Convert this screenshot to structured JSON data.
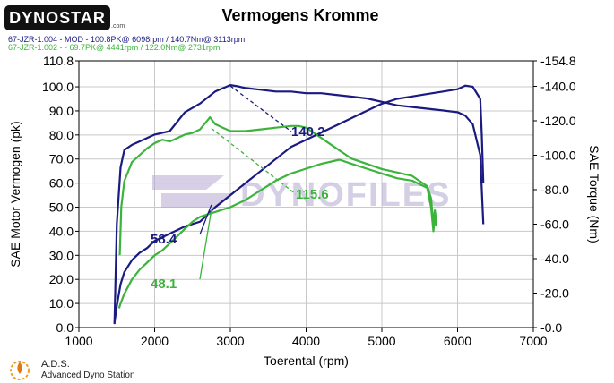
{
  "logo": {
    "text": "DYNOSTAR",
    "suffix": ".com"
  },
  "title": "Vermogens Kromme",
  "legend": [
    "67-JZR-1.004 - MOD - 100.8PK@ 6098rpm / 140.7Nm@ 3113rpm",
    "67-JZR-1.002 - - 69.7PK@ 4441rpm / 122.0Nm@ 2731rpm"
  ],
  "footer": {
    "name": "A.D.S.",
    "description": "Advanced Dyno Station"
  },
  "watermark": "DYNOFILES",
  "colors": {
    "dark_blue": "#1a1a80",
    "green": "#3cb43c",
    "grid": "#c8c8c8",
    "watermark": "#b4a8d0"
  },
  "chart_data": {
    "type": "line",
    "title": "Vermogens Kromme",
    "xlabel": "Toerental (rpm)",
    "ylabel_left": "SAE Motor Vermogen (pk)",
    "ylabel_right": "SAE Torque (Nm)",
    "xlim": [
      1000,
      7000
    ],
    "ylim_left": [
      0,
      110.8
    ],
    "ylim_right": [
      0,
      154.8
    ],
    "x_ticks": [
      "1000",
      "2000",
      "3000",
      "4000",
      "5000",
      "6000",
      "7000"
    ],
    "y_left_ticks": [
      "0.0",
      "10.0",
      "20.0",
      "30.0",
      "40.0",
      "50.0",
      "60.0",
      "70.0",
      "80.0",
      "90.0",
      "100.0",
      "110.8"
    ],
    "y_right_ticks": [
      "0.0",
      "20.0",
      "40.0",
      "60.0",
      "80.0",
      "100.0",
      "120.0",
      "140.0",
      "154.8"
    ],
    "grid": true,
    "annotations": [
      "140.2",
      "115.6",
      "58.4",
      "48.1"
    ],
    "series": [
      {
        "name": "67-JZR-1.004 - MOD",
        "kind": "power",
        "axis": "left",
        "color": "#1a1a80",
        "x": [
          1470,
          1500,
          1550,
          1600,
          1700,
          1800,
          1900,
          2000,
          2200,
          2400,
          2600,
          2800,
          3000,
          3200,
          3400,
          3600,
          3800,
          4000,
          4200,
          4400,
          4600,
          4800,
          5000,
          5200,
          5400,
          5600,
          5800,
          6000,
          6100,
          6200,
          6300,
          6320,
          6340
        ],
        "y": [
          2,
          9,
          18,
          23,
          28,
          31,
          33,
          36,
          39,
          42,
          44,
          50,
          55,
          60,
          65,
          70,
          75,
          78,
          81,
          84,
          87,
          90,
          93,
          95,
          96,
          97,
          98,
          99,
          100.5,
          100,
          95,
          80,
          60
        ]
      },
      {
        "name": "67-JZR-1.004 - MOD",
        "kind": "torque",
        "axis": "right",
        "color": "#1a1a80",
        "x": [
          1470,
          1500,
          1550,
          1600,
          1700,
          1800,
          1900,
          2000,
          2200,
          2400,
          2600,
          2800,
          3000,
          3100,
          3200,
          3400,
          3600,
          3800,
          4000,
          4200,
          4400,
          4600,
          4800,
          5000,
          5200,
          5400,
          5600,
          5800,
          6000,
          6100,
          6200,
          6300,
          6340
        ],
        "y": [
          2,
          60,
          93,
          103,
          106,
          108,
          110,
          112,
          114,
          125,
          130,
          137,
          140.7,
          140,
          139,
          138,
          137,
          137,
          136,
          136,
          135,
          134,
          133,
          131,
          129,
          128,
          127,
          126,
          125,
          123,
          118,
          100,
          60
        ]
      },
      {
        "name": "67-JZR-1.002",
        "kind": "power",
        "axis": "left",
        "color": "#3cb43c",
        "x": [
          1530,
          1550,
          1600,
          1700,
          1800,
          1900,
          2000,
          2100,
          2200,
          2300,
          2400,
          2500,
          2600,
          2700,
          2800,
          2900,
          3000,
          3200,
          3400,
          3600,
          3800,
          4000,
          4200,
          4441,
          4600,
          4800,
          5000,
          5200,
          5400,
          5600,
          5650,
          5680,
          5700,
          5720
        ],
        "y": [
          8,
          10,
          14,
          20,
          24,
          27,
          30,
          32,
          35,
          38,
          41,
          44,
          46,
          47,
          48,
          49,
          50,
          53,
          57,
          61,
          64,
          66,
          68,
          69.7,
          68,
          66,
          64,
          62,
          61,
          58,
          50,
          40,
          46,
          42
        ]
      },
      {
        "name": "67-JZR-1.002",
        "kind": "torque",
        "axis": "right",
        "color": "#3cb43c",
        "x": [
          1540,
          1560,
          1600,
          1700,
          1800,
          1900,
          2000,
          2100,
          2200,
          2300,
          2400,
          2500,
          2600,
          2731,
          2800,
          2900,
          3000,
          3200,
          3400,
          3600,
          3800,
          3900,
          4000,
          4200,
          4400,
          4600,
          4800,
          5000,
          5200,
          5400,
          5600,
          5650,
          5680,
          5700,
          5720
        ],
        "y": [
          42,
          70,
          85,
          96,
          100,
          104,
          107,
          109,
          108,
          110,
          112,
          113,
          115,
          122,
          118,
          116,
          114,
          114,
          115,
          116,
          117,
          117,
          116,
          110,
          104,
          98,
          95,
          92,
          90,
          88,
          82,
          75,
          60,
          68,
          62
        ]
      }
    ]
  }
}
